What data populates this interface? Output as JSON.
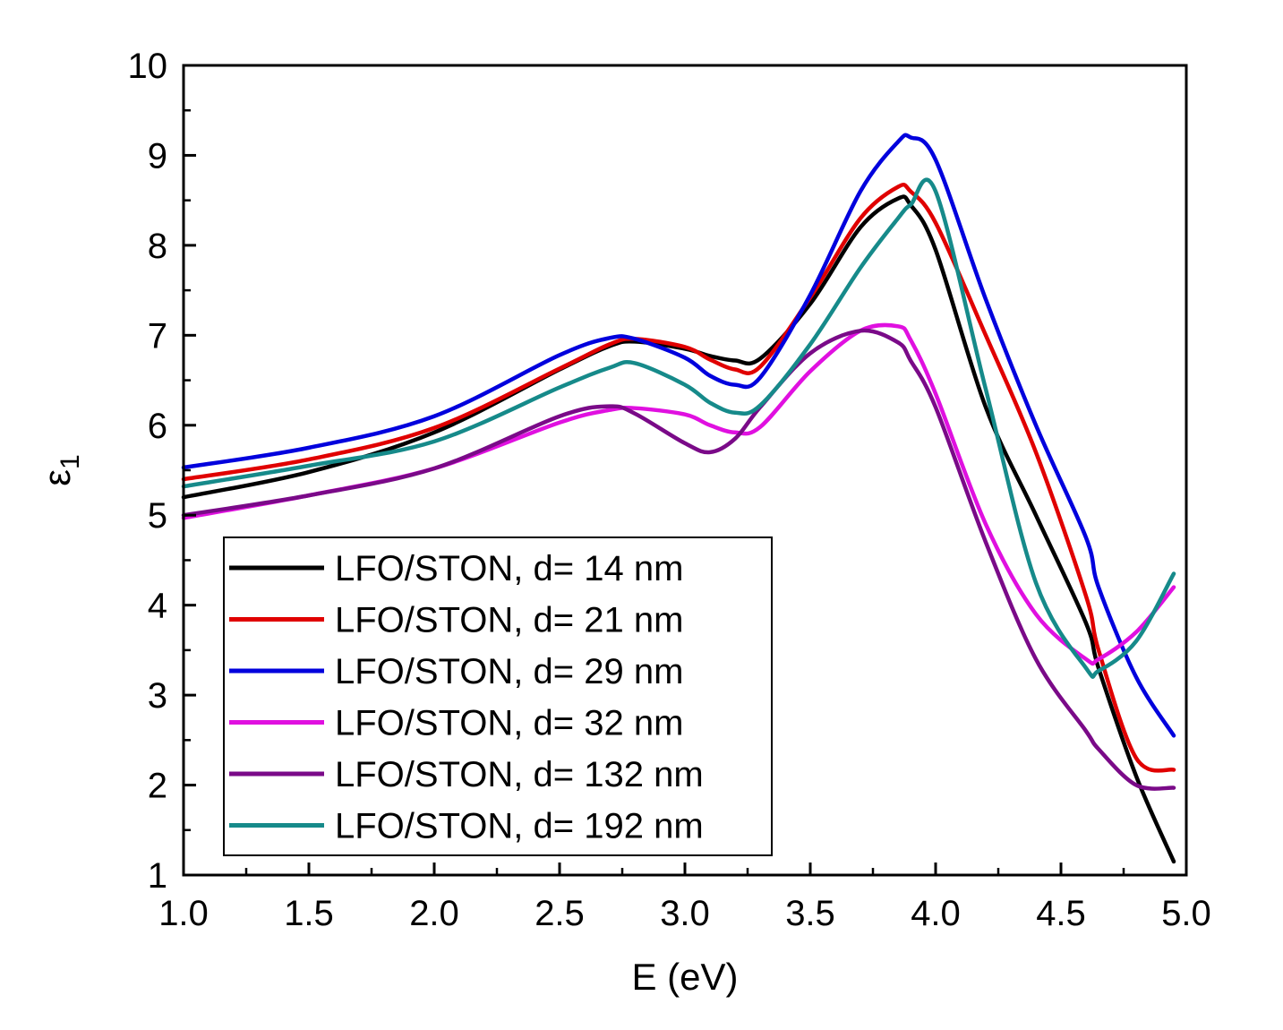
{
  "chart_data": {
    "type": "line",
    "xlabel": "E (eV)",
    "ylabel": "ε",
    "ylabel_sub": "1",
    "xlim": [
      1.0,
      5.0
    ],
    "ylim": [
      1,
      10
    ],
    "x_ticks": [
      "1.0",
      "1.5",
      "2.0",
      "2.5",
      "3.0",
      "3.5",
      "4.0",
      "4.5",
      "5.0"
    ],
    "x_tick_values": [
      1.0,
      1.5,
      2.0,
      2.5,
      3.0,
      3.5,
      4.0,
      4.5,
      5.0
    ],
    "y_ticks": [
      "1",
      "2",
      "3",
      "4",
      "5",
      "6",
      "7",
      "8",
      "9",
      "10"
    ],
    "y_tick_values": [
      1,
      2,
      3,
      4,
      5,
      6,
      7,
      8,
      9,
      10
    ],
    "grid": false,
    "legend_position": "bottom-left",
    "x": [
      1.0,
      1.5,
      2.0,
      2.5,
      2.7,
      2.8,
      3.0,
      3.1,
      3.2,
      3.3,
      3.5,
      3.7,
      3.85,
      3.9,
      4.0,
      4.2,
      4.4,
      4.6,
      4.65,
      4.8,
      4.95
    ],
    "series": [
      {
        "name": "LFO/STON, d= 14 nm",
        "color": "#000000",
        "values": [
          5.2,
          5.48,
          5.92,
          6.62,
          6.88,
          6.93,
          6.85,
          6.77,
          6.72,
          6.74,
          7.35,
          8.2,
          8.52,
          8.45,
          7.95,
          6.2,
          5.0,
          3.8,
          3.3,
          2.1,
          1.15
        ]
      },
      {
        "name": "LFO/STON, d= 21 nm",
        "color": "#e00000",
        "values": [
          5.4,
          5.62,
          5.97,
          6.63,
          6.9,
          6.96,
          6.87,
          6.73,
          6.62,
          6.65,
          7.42,
          8.3,
          8.65,
          8.6,
          8.25,
          7.0,
          5.7,
          4.1,
          3.5,
          2.3,
          2.17
        ]
      },
      {
        "name": "LFO/STON, d= 29 nm",
        "color": "#0000dd",
        "values": [
          5.53,
          5.75,
          6.1,
          6.78,
          6.97,
          6.96,
          6.75,
          6.55,
          6.45,
          6.53,
          7.45,
          8.6,
          9.15,
          9.2,
          8.95,
          7.4,
          6.0,
          4.75,
          4.2,
          3.2,
          2.55
        ]
      },
      {
        "name": "LFO/STON, d= 32 nm",
        "color": "#e010e0",
        "values": [
          4.97,
          5.22,
          5.52,
          6.03,
          6.17,
          6.19,
          6.12,
          6.0,
          5.92,
          5.98,
          6.6,
          7.05,
          7.1,
          6.95,
          6.35,
          4.9,
          3.9,
          3.4,
          3.4,
          3.7,
          4.2
        ]
      },
      {
        "name": "LFO/STON, d= 132 nm",
        "color": "#7a0a88",
        "values": [
          5.0,
          5.22,
          5.52,
          6.1,
          6.21,
          6.13,
          5.8,
          5.7,
          5.85,
          6.2,
          6.8,
          7.05,
          6.92,
          6.72,
          6.2,
          4.7,
          3.4,
          2.6,
          2.4,
          2.0,
          1.97
        ]
      },
      {
        "name": "LFO/STON, d= 192 nm",
        "color": "#168a8a",
        "values": [
          5.32,
          5.55,
          5.82,
          6.42,
          6.64,
          6.69,
          6.45,
          6.25,
          6.14,
          6.22,
          6.9,
          7.75,
          8.3,
          8.45,
          8.6,
          6.4,
          4.25,
          3.3,
          3.27,
          3.6,
          4.35
        ]
      }
    ]
  }
}
